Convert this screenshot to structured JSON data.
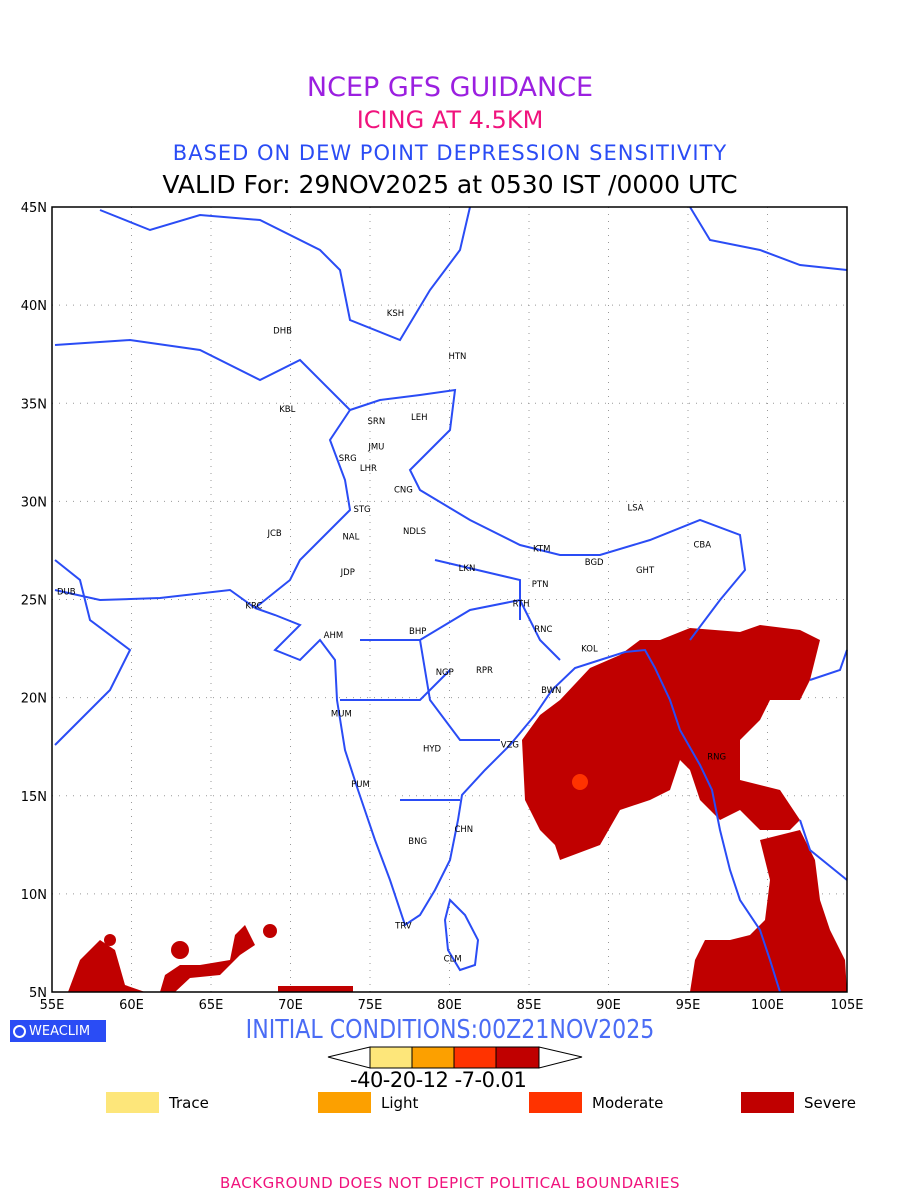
{
  "title": {
    "line1": "NCEP GFS GUIDANCE",
    "line2": "ICING AT 4.5KM",
    "line3": "BASED ON DEW POINT DEPRESSION SENSITIVITY",
    "line4": "VALID For: 29NOV2025 at 0530 IST /0000 UTC"
  },
  "map": {
    "lon_range": [
      55,
      105
    ],
    "lat_range": [
      5,
      45
    ],
    "lon_ticks": [
      "55E",
      "60E",
      "65E",
      "70E",
      "75E",
      "80E",
      "85E",
      "90E",
      "95E",
      "100E",
      "105E"
    ],
    "lat_ticks": [
      "45N",
      "40N",
      "35N",
      "30N",
      "25N",
      "20N",
      "15N",
      "10N",
      "5N"
    ],
    "stations": [
      {
        "id": "KSH",
        "lon": 76.6,
        "lat": 39.6
      },
      {
        "id": "DHB",
        "lon": 69.5,
        "lat": 38.7
      },
      {
        "id": "HTN",
        "lon": 80.5,
        "lat": 37.4
      },
      {
        "id": "KBL",
        "lon": 69.8,
        "lat": 34.7
      },
      {
        "id": "SRN",
        "lon": 75.4,
        "lat": 34.1
      },
      {
        "id": "LEH",
        "lon": 78.1,
        "lat": 34.3
      },
      {
        "id": "JMU",
        "lon": 75.4,
        "lat": 32.8
      },
      {
        "id": "SRG",
        "lon": 73.6,
        "lat": 32.2
      },
      {
        "id": "LHR",
        "lon": 74.9,
        "lat": 31.7
      },
      {
        "id": "CNG",
        "lon": 77.1,
        "lat": 30.6
      },
      {
        "id": "STG",
        "lon": 74.5,
        "lat": 29.6
      },
      {
        "id": "LSA",
        "lon": 91.7,
        "lat": 29.7
      },
      {
        "id": "JCB",
        "lon": 69.0,
        "lat": 28.4
      },
      {
        "id": "NAL",
        "lon": 73.8,
        "lat": 28.2
      },
      {
        "id": "NDLS",
        "lon": 77.8,
        "lat": 28.5
      },
      {
        "id": "KTM",
        "lon": 85.8,
        "lat": 27.6
      },
      {
        "id": "CBA",
        "lon": 95.9,
        "lat": 27.8
      },
      {
        "id": "BGD",
        "lon": 89.1,
        "lat": 26.9
      },
      {
        "id": "GHT",
        "lon": 92.3,
        "lat": 26.5
      },
      {
        "id": "JDP",
        "lon": 73.6,
        "lat": 26.4
      },
      {
        "id": "LKN",
        "lon": 81.1,
        "lat": 26.6
      },
      {
        "id": "DUB",
        "lon": 55.9,
        "lat": 25.4
      },
      {
        "id": "PTN",
        "lon": 85.7,
        "lat": 25.8
      },
      {
        "id": "KRC",
        "lon": 67.7,
        "lat": 24.7
      },
      {
        "id": "RTH",
        "lon": 84.5,
        "lat": 24.8
      },
      {
        "id": "BHP",
        "lon": 78.0,
        "lat": 23.4
      },
      {
        "id": "AHM",
        "lon": 72.7,
        "lat": 23.2
      },
      {
        "id": "RNC",
        "lon": 85.9,
        "lat": 23.5
      },
      {
        "id": "KOL",
        "lon": 88.8,
        "lat": 22.5
      },
      {
        "id": "NGP",
        "lon": 79.7,
        "lat": 21.3
      },
      {
        "id": "RPR",
        "lon": 82.2,
        "lat": 21.4
      },
      {
        "id": "BWN",
        "lon": 86.4,
        "lat": 20.4
      },
      {
        "id": "MUM",
        "lon": 73.2,
        "lat": 19.2
      },
      {
        "id": "HYD",
        "lon": 78.9,
        "lat": 17.4
      },
      {
        "id": "VZG",
        "lon": 83.8,
        "lat": 17.6
      },
      {
        "id": "RNG",
        "lon": 96.8,
        "lat": 17.0
      },
      {
        "id": "PUM",
        "lon": 74.4,
        "lat": 15.6
      },
      {
        "id": "CHN",
        "lon": 80.9,
        "lat": 13.3
      },
      {
        "id": "BNG",
        "lon": 78.0,
        "lat": 12.7
      },
      {
        "id": "TRV",
        "lon": 77.1,
        "lat": 8.4
      },
      {
        "id": "CLM",
        "lon": 80.2,
        "lat": 6.7
      }
    ]
  },
  "logo": "WEACLIM",
  "initial_conditions": "INITIAL CONDITIONS:00Z21NOV2025",
  "colorbar": {
    "labels": "-40-20-12 -7-0.01",
    "colors": [
      "#fde67a",
      "#fca000",
      "#ff3300",
      "#c00000"
    ]
  },
  "legend": [
    {
      "label": "Trace",
      "color": "#fde67a"
    },
    {
      "label": "Light",
      "color": "#fca000"
    },
    {
      "label": "Moderate",
      "color": "#ff3300"
    },
    {
      "label": "Severe",
      "color": "#c00000"
    }
  ],
  "footer": "BACKGROUND DOES NOT DEPICT POLITICAL BOUNDARIES"
}
